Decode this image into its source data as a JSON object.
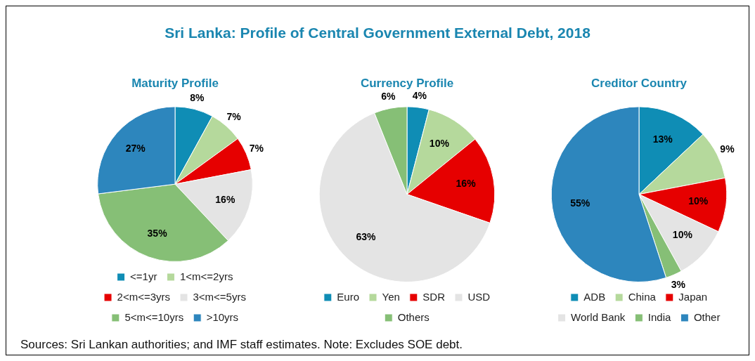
{
  "chart_data": [
    {
      "type": "other",
      "title": "Sri Lanka: Profile of Central Government External Debt, 2018",
      "annotations": [
        "Sources: Sri Lankan authorities; and IMF staff estimates. Note: Excludes SOE debt."
      ]
    },
    {
      "type": "pie",
      "title": "Maturity Profile",
      "categories": [
        "<=1yr",
        "1<m<=2yrs",
        "2<m<=3yrs",
        "3<m<=5yrs",
        "5<m<=10yrs",
        ">10yrs"
      ],
      "values": [
        8,
        7,
        7,
        16,
        35,
        27
      ],
      "value_labels": [
        "8%",
        "7%",
        "7%",
        "16%",
        "35%",
        "27%"
      ],
      "colors": [
        "#0f8db5",
        "#b5d99c",
        "#e60000",
        "#e4e4e4",
        "#86bf76",
        "#2d86bd"
      ],
      "legend": "bottom"
    },
    {
      "type": "pie",
      "title": "Currency Profile",
      "categories": [
        "Euro",
        "Yen",
        "SDR",
        "USD",
        "Others"
      ],
      "values": [
        4,
        10,
        16,
        63,
        6
      ],
      "value_labels": [
        "4%",
        "10%",
        "16%",
        "63%",
        "6%"
      ],
      "colors": [
        "#0f8db5",
        "#b5d99c",
        "#e60000",
        "#e4e4e4",
        "#86bf76"
      ],
      "legend": "bottom"
    },
    {
      "type": "pie",
      "title": "Creditor Country",
      "categories": [
        "ADB",
        "China",
        "Japan",
        "World Bank",
        "India",
        "Other"
      ],
      "values": [
        13,
        9,
        10,
        10,
        3,
        55
      ],
      "value_labels": [
        "13%",
        "9%",
        "10%",
        "10%",
        "3%",
        "55%"
      ],
      "colors": [
        "#0f8db5",
        "#b5d99c",
        "#e60000",
        "#e4e4e4",
        "#86bf76",
        "#2d86bd"
      ],
      "legend": "bottom"
    }
  ]
}
